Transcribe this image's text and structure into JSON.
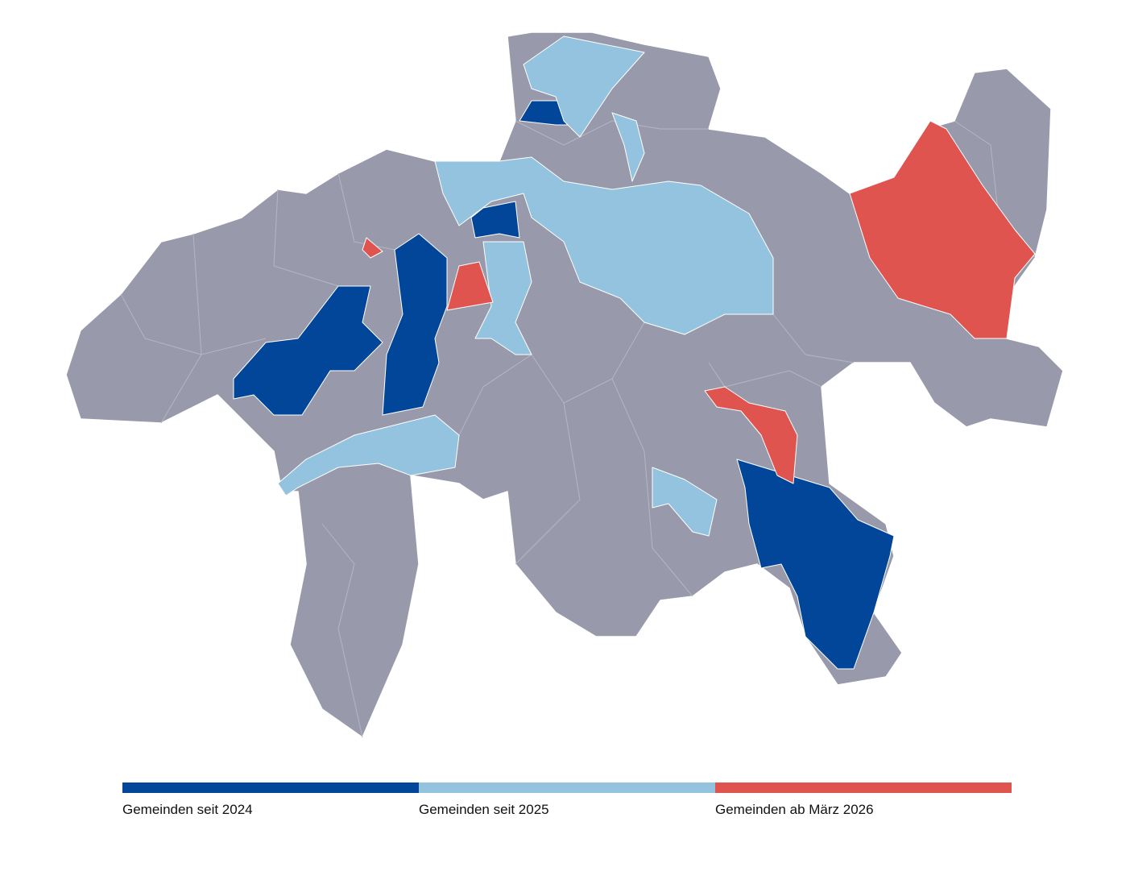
{
  "legend": [
    {
      "label": "Gemeinden seit 2024",
      "color": "#02469a"
    },
    {
      "label": "Gemeinden seit 2025",
      "color": "#93c3de"
    },
    {
      "label": "Gemeinden ab März 2026",
      "color": "#e05450"
    }
  ]
}
